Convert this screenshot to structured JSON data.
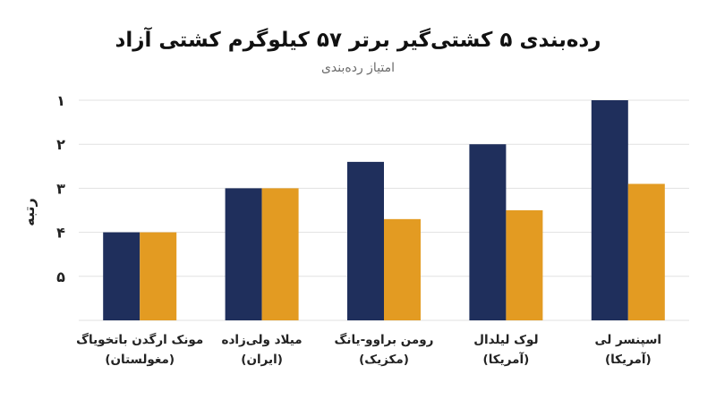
{
  "chart_data": {
    "type": "bar",
    "title": "رده‌بندی ۵ کشتی‌گیر برتر ۵۷ کیلوگرم کشتی آزاد",
    "subtitle": "امتیاز رده‌بندی",
    "ylabel": "رتبه",
    "xlabel": "",
    "ylim": [
      0,
      5
    ],
    "y_ticks": [
      {
        "value": 5,
        "label": "۱"
      },
      {
        "value": 4,
        "label": "۲"
      },
      {
        "value": 3,
        "label": "۳"
      },
      {
        "value": 2,
        "label": "۴"
      },
      {
        "value": 1,
        "label": "۵"
      }
    ],
    "grid": true,
    "legend": "none",
    "categories": [
      {
        "name": "مونک ارگدن باتخویاگ",
        "country": "(مغولستان)"
      },
      {
        "name": "میلاد ولی‌زاده",
        "country": "(ایران)"
      },
      {
        "name": "رومن براوو-یانگ",
        "country": "(مکزیک)"
      },
      {
        "name": "لوک لیلدال",
        "country": "(آمریکا)"
      },
      {
        "name": "اسپنسر لی",
        "country": "(آمریکا)"
      }
    ],
    "series": [
      {
        "color": "#1f2f5c",
        "values": [
          2,
          3,
          3.6,
          4,
          5
        ]
      },
      {
        "color": "#e39b22",
        "values": [
          2,
          3,
          2.3,
          2.5,
          3.1
        ]
      }
    ]
  }
}
